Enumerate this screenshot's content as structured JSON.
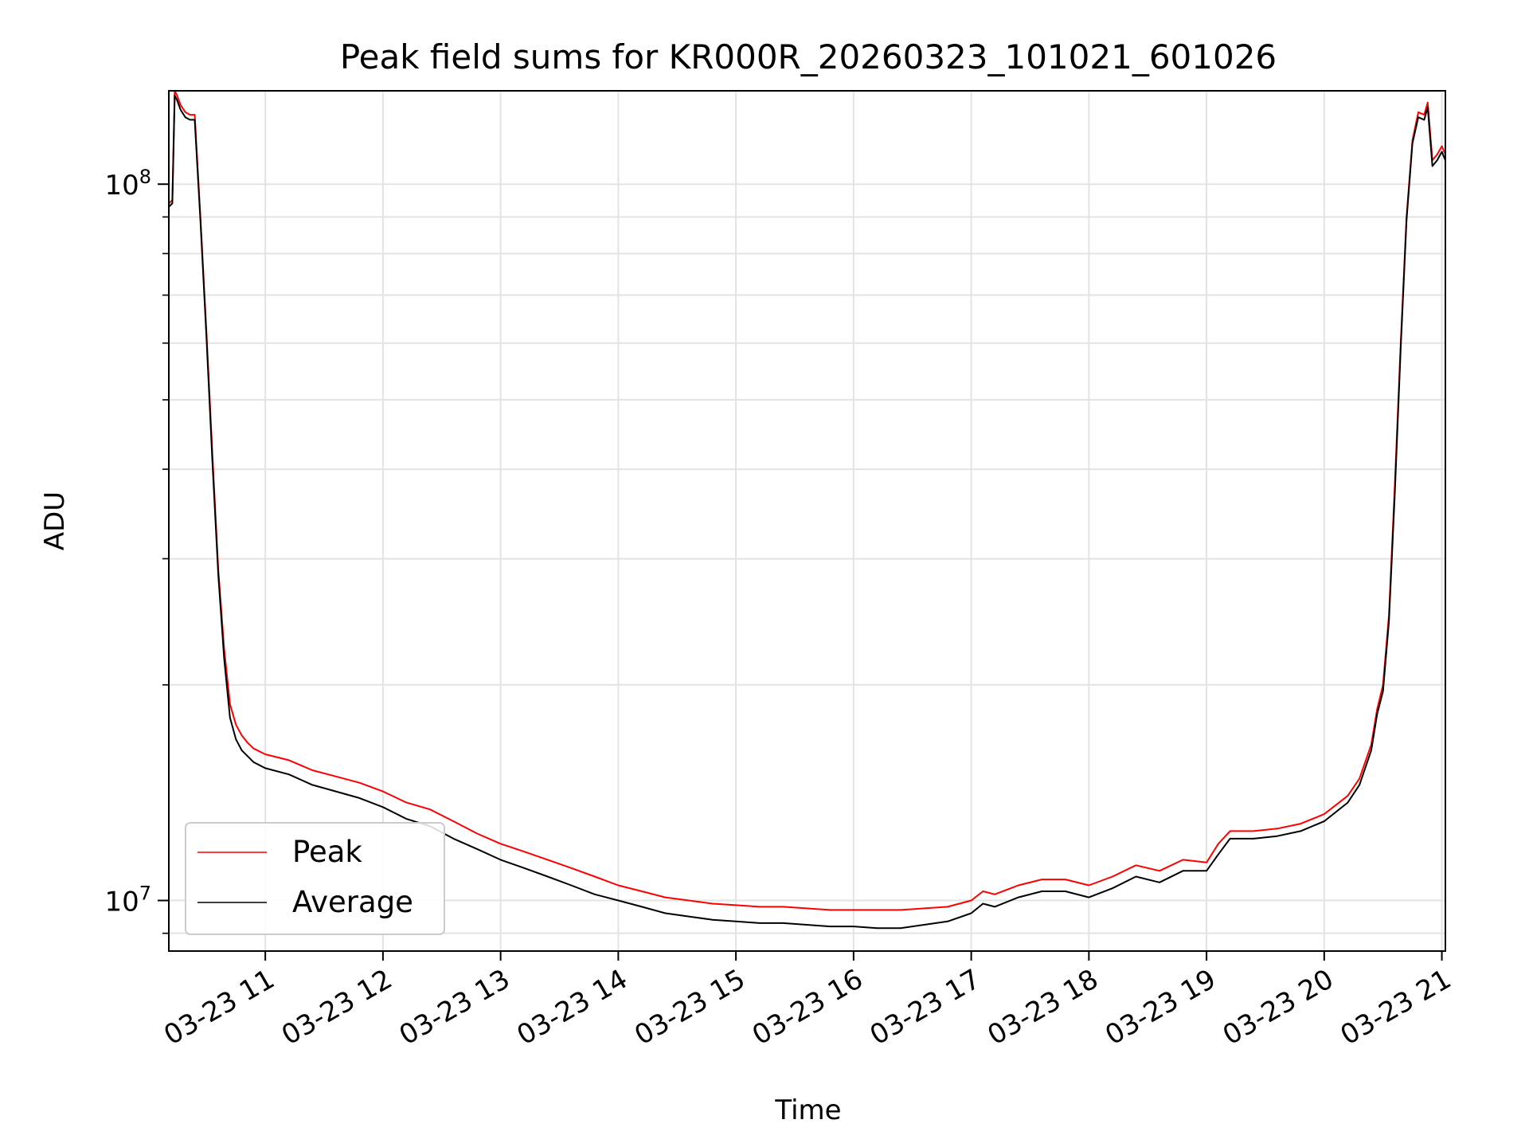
{
  "chart_data": {
    "type": "line",
    "title": "Peak field sums for KR000R_20260323_101021_601026",
    "xlabel": "Time",
    "ylabel": "ADU",
    "x_unit": "hours on 2026-03-23",
    "xlim": [
      10.18,
      21.03
    ],
    "ylim": [
      8500000,
      135000000
    ],
    "yscale": "log",
    "grid": true,
    "legend_position": "lower-left",
    "x_ticks": [
      {
        "value": 11,
        "label": "03-23 11"
      },
      {
        "value": 12,
        "label": "03-23 12"
      },
      {
        "value": 13,
        "label": "03-23 13"
      },
      {
        "value": 14,
        "label": "03-23 14"
      },
      {
        "value": 15,
        "label": "03-23 15"
      },
      {
        "value": 16,
        "label": "03-23 16"
      },
      {
        "value": 17,
        "label": "03-23 17"
      },
      {
        "value": 18,
        "label": "03-23 18"
      },
      {
        "value": 19,
        "label": "03-23 19"
      },
      {
        "value": 20,
        "label": "03-23 20"
      },
      {
        "value": 21,
        "label": "03-23 21"
      }
    ],
    "y_ticks": [
      {
        "value": 10000000,
        "base": "10",
        "exp": "7"
      },
      {
        "value": 100000000,
        "base": "10",
        "exp": "8"
      }
    ],
    "series": [
      {
        "name": "Peak",
        "color": "#ff0000",
        "x": [
          10.18,
          10.21,
          10.23,
          10.25,
          10.28,
          10.32,
          10.36,
          10.4,
          10.45,
          10.5,
          10.55,
          10.6,
          10.65,
          10.7,
          10.75,
          10.8,
          10.85,
          10.9,
          11.0,
          11.2,
          11.4,
          11.6,
          11.8,
          12.0,
          12.2,
          12.4,
          12.6,
          12.8,
          13.0,
          13.2,
          13.4,
          13.6,
          13.8,
          14.0,
          14.2,
          14.4,
          14.6,
          14.8,
          15.0,
          15.2,
          15.4,
          15.6,
          15.8,
          16.0,
          16.2,
          16.4,
          16.6,
          16.8,
          17.0,
          17.1,
          17.2,
          17.4,
          17.6,
          17.8,
          18.0,
          18.2,
          18.4,
          18.6,
          18.8,
          19.0,
          19.1,
          19.2,
          19.4,
          19.6,
          19.8,
          20.0,
          20.2,
          20.3,
          20.4,
          20.45,
          20.5,
          20.55,
          20.6,
          20.65,
          20.7,
          20.75,
          20.8,
          20.85,
          20.88,
          20.92,
          20.96,
          21.0,
          21.03
        ],
        "y": [
          94000000,
          95000000,
          135000000,
          133000000,
          129000000,
          126000000,
          125000000,
          125000000,
          89000000,
          62000000,
          42000000,
          29000000,
          22500000,
          18800000,
          17600000,
          17000000,
          16600000,
          16300000,
          16000000,
          15700000,
          15200000,
          14900000,
          14600000,
          14200000,
          13700000,
          13400000,
          12900000,
          12400000,
          12000000,
          11700000,
          11400000,
          11100000,
          10800000,
          10500000,
          10300000,
          10100000,
          10000000,
          9900000,
          9850000,
          9800000,
          9800000,
          9750000,
          9700000,
          9700000,
          9700000,
          9700000,
          9750000,
          9800000,
          10000000,
          10300000,
          10200000,
          10500000,
          10700000,
          10700000,
          10500000,
          10800000,
          11200000,
          11000000,
          11400000,
          11300000,
          12000000,
          12500000,
          12500000,
          12600000,
          12800000,
          13200000,
          14000000,
          14800000,
          16500000,
          18500000,
          20000000,
          25000000,
          38000000,
          60000000,
          90000000,
          115000000,
          126000000,
          125000000,
          130000000,
          108000000,
          110000000,
          113000000,
          110000000
        ]
      },
      {
        "name": "Average",
        "color": "#000000",
        "x": [
          10.18,
          10.21,
          10.23,
          10.25,
          10.28,
          10.32,
          10.36,
          10.4,
          10.45,
          10.5,
          10.55,
          10.6,
          10.65,
          10.7,
          10.75,
          10.8,
          10.85,
          10.9,
          11.0,
          11.2,
          11.4,
          11.6,
          11.8,
          12.0,
          12.2,
          12.4,
          12.6,
          12.8,
          13.0,
          13.2,
          13.4,
          13.6,
          13.8,
          14.0,
          14.2,
          14.4,
          14.6,
          14.8,
          15.0,
          15.2,
          15.4,
          15.6,
          15.8,
          16.0,
          16.2,
          16.4,
          16.6,
          16.8,
          17.0,
          17.1,
          17.2,
          17.4,
          17.6,
          17.8,
          18.0,
          18.2,
          18.4,
          18.6,
          18.8,
          19.0,
          19.1,
          19.2,
          19.4,
          19.6,
          19.8,
          20.0,
          20.2,
          20.3,
          20.4,
          20.45,
          20.5,
          20.55,
          20.6,
          20.65,
          20.7,
          20.75,
          20.8,
          20.85,
          20.88,
          20.92,
          20.96,
          21.0,
          21.03
        ],
        "y": [
          93000000,
          94000000,
          133000000,
          131000000,
          127000000,
          124000000,
          123000000,
          123000000,
          88000000,
          61000000,
          41000000,
          28500000,
          21800000,
          18000000,
          16800000,
          16200000,
          15900000,
          15600000,
          15300000,
          15000000,
          14500000,
          14200000,
          13900000,
          13500000,
          13000000,
          12700000,
          12200000,
          11800000,
          11400000,
          11100000,
          10800000,
          10500000,
          10200000,
          10000000,
          9800000,
          9600000,
          9500000,
          9400000,
          9350000,
          9300000,
          9300000,
          9250000,
          9200000,
          9200000,
          9150000,
          9150000,
          9250000,
          9350000,
          9600000,
          9900000,
          9800000,
          10100000,
          10300000,
          10300000,
          10100000,
          10400000,
          10800000,
          10600000,
          11000000,
          11000000,
          11600000,
          12200000,
          12200000,
          12300000,
          12500000,
          12900000,
          13700000,
          14500000,
          16200000,
          18200000,
          19600000,
          24500000,
          37000000,
          59000000,
          89000000,
          114000000,
          124000000,
          123000000,
          128000000,
          106000000,
          108000000,
          111000000,
          108000000
        ]
      }
    ]
  }
}
